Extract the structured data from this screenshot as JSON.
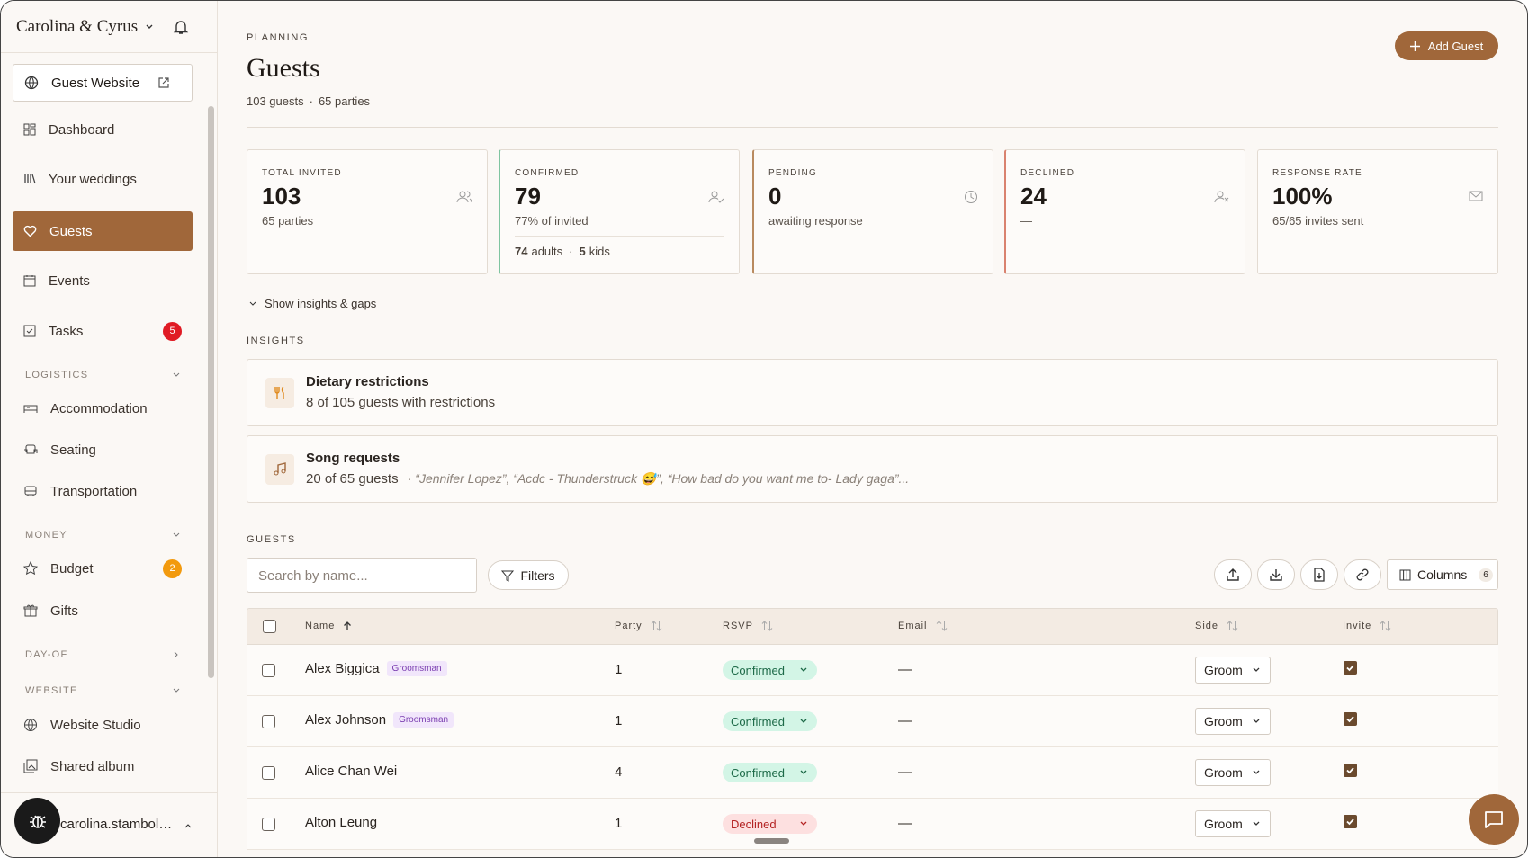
{
  "sidebar": {
    "account": "Carolina & Cyrus",
    "guest_website": "Guest Website",
    "nav": [
      {
        "label": "Dashboard"
      },
      {
        "label": "Your weddings"
      },
      {
        "label": "Guests"
      },
      {
        "label": "Events"
      },
      {
        "label": "Tasks",
        "badge": "5"
      }
    ],
    "sections": [
      {
        "title": "LOGISTICS",
        "items": [
          {
            "label": "Accommodation"
          },
          {
            "label": "Seating"
          },
          {
            "label": "Transportation"
          }
        ]
      },
      {
        "title": "MONEY",
        "items": [
          {
            "label": "Budget",
            "badge": "2"
          },
          {
            "label": "Gifts"
          }
        ]
      },
      {
        "title": "DAY-OF"
      },
      {
        "title": "WEBSITE",
        "items": [
          {
            "label": "Website Studio"
          },
          {
            "label": "Shared album"
          }
        ]
      }
    ],
    "user": "carolina.stambol…"
  },
  "header": {
    "eyebrow": "PLANNING",
    "title": "Guests",
    "guests": "103 guests",
    "parties": "65 parties",
    "add_button": "Add Guest"
  },
  "stats": [
    {
      "label": "TOTAL INVITED",
      "value": "103",
      "sub": "65 parties"
    },
    {
      "label": "CONFIRMED",
      "value": "79",
      "sub": "77% of invited",
      "adults": "74",
      "adults_label": "adults",
      "kids": "5",
      "kids_label": "kids"
    },
    {
      "label": "PENDING",
      "value": "0",
      "sub": "awaiting response"
    },
    {
      "label": "DECLINED",
      "value": "24",
      "sub": "—"
    },
    {
      "label": "RESPONSE RATE",
      "value": "100%",
      "sub": "65/65 invites sent"
    }
  ],
  "insights": {
    "toggle": "Show insights & gaps",
    "title": "INSIGHTS",
    "items": [
      {
        "title": "Dietary restrictions",
        "text": "8 of 105 guests with restrictions"
      },
      {
        "title": "Song requests",
        "text": "20 of 65 guests",
        "quote": "· “Jennifer Lopez”, “Acdc - Thunderstruck 😅”, “How bad do you want me to- Lady gaga”..."
      }
    ]
  },
  "guests": {
    "title": "GUESTS",
    "search_placeholder": "Search by name...",
    "filters": "Filters",
    "columns": "Columns",
    "columns_count": "6",
    "headers": [
      "Name",
      "Party",
      "RSVP",
      "Email",
      "Side",
      "Invite"
    ],
    "rows": [
      {
        "name": "Alex Biggica",
        "tag": "Groomsman",
        "party": "1",
        "rsvp": "Confirmed",
        "email": "—",
        "side": "Groom"
      },
      {
        "name": "Alex Johnson",
        "tag": "Groomsman",
        "party": "1",
        "rsvp": "Confirmed",
        "email": "—",
        "side": "Groom"
      },
      {
        "name": "Alice Chan Wei",
        "party": "4",
        "rsvp": "Confirmed",
        "email": "—",
        "side": "Groom"
      },
      {
        "name": "Alton Leung",
        "party": "1",
        "rsvp": "Declined",
        "email": "—",
        "side": "Groom"
      }
    ]
  }
}
